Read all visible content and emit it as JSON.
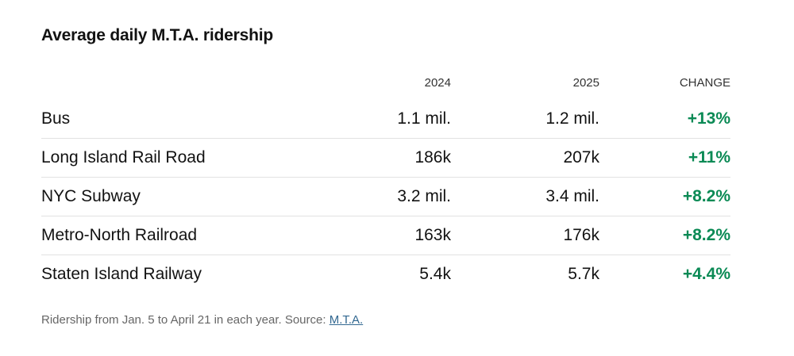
{
  "title": "Average daily M.T.A. ridership",
  "columns": {
    "year_a": "2024",
    "year_b": "2025",
    "change": "CHANGE"
  },
  "rows": [
    {
      "name": "Bus",
      "y2024": "1.1 mil.",
      "y2025": "1.2 mil.",
      "change": "+13%"
    },
    {
      "name": "Long Island Rail Road",
      "y2024": "186k",
      "y2025": "207k",
      "change": "+11%"
    },
    {
      "name": "NYC Subway",
      "y2024": "3.2 mil.",
      "y2025": "3.4 mil.",
      "change": "+8.2%"
    },
    {
      "name": "Metro-North Railroad",
      "y2024": "163k",
      "y2025": "176k",
      "change": "+8.2%"
    },
    {
      "name": "Staten Island Railway",
      "y2024": "5.4k",
      "y2025": "5.7k",
      "change": "+4.4%"
    }
  ],
  "footnote": {
    "text": "Ridership from Jan. 5 to April 21 in each year. Source: ",
    "source_link": "M.T.A."
  },
  "colors": {
    "change_positive": "#0b8a55",
    "link": "#326891"
  }
}
